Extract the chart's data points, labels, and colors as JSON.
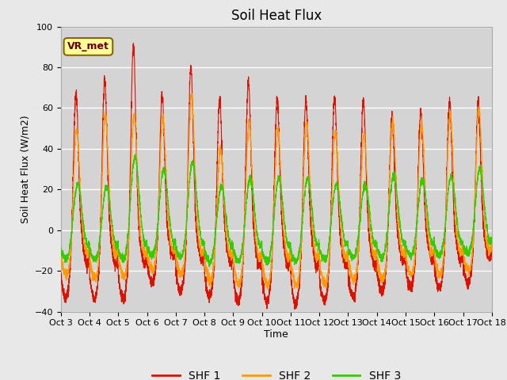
{
  "title": "Soil Heat Flux",
  "ylabel": "Soil Heat Flux (W/m2)",
  "xlabel": "Time",
  "ylim": [
    -40,
    100
  ],
  "background_color": "#e8e8e8",
  "plot_bg_color": "#d4d4d4",
  "grid_color": "#ffffff",
  "colors": {
    "SHF 1": "#dd1100",
    "SHF 2": "#ff9900",
    "SHF 3": "#33cc00"
  },
  "legend_labels": [
    "SHF 1",
    "SHF 2",
    "SHF 3"
  ],
  "annotation_text": "VR_met",
  "annotation_box_color": "#ffff99",
  "annotation_box_edge": "#886600",
  "xtick_labels": [
    "Oct 3",
    "Oct 4",
    "Oct 5",
    "Oct 6",
    "Oct 7",
    "Oct 8",
    "Oct 9",
    "Oct 10",
    "Oct 11",
    "Oct 12",
    "Oct 13",
    "Oct 14",
    "Oct 15",
    "Oct 16",
    "Oct 17",
    "Oct 18"
  ],
  "title_fontsize": 12,
  "label_fontsize": 9,
  "tick_fontsize": 8,
  "legend_fontsize": 10,
  "n_days": 15,
  "points_per_day": 288,
  "shf1_day_peaks": [
    73,
    80,
    97,
    70,
    85,
    70,
    79,
    70,
    70,
    71,
    70,
    60,
    63,
    68,
    67
  ],
  "shf2_day_peaks": [
    55,
    64,
    63,
    61,
    72,
    47,
    60,
    57,
    60,
    55,
    53,
    60,
    58,
    63,
    65
  ],
  "shf3_day_peaks": [
    30,
    28,
    43,
    36,
    40,
    29,
    33,
    33,
    33,
    30,
    29,
    34,
    31,
    33,
    36
  ],
  "shf1_night_troughs": [
    -33,
    -34,
    -34,
    -26,
    -30,
    -33,
    -35,
    -35,
    -36,
    -35,
    -33,
    -30,
    -28,
    -28,
    -26
  ],
  "shf2_night_troughs": [
    -22,
    -24,
    -23,
    -20,
    -22,
    -25,
    -27,
    -27,
    -27,
    -27,
    -25,
    -24,
    -22,
    -22,
    -20
  ],
  "shf3_night_troughs": [
    -16,
    -16,
    -16,
    -14,
    -15,
    -17,
    -17,
    -17,
    -17,
    -16,
    -15,
    -15,
    -14,
    -14,
    -13
  ]
}
